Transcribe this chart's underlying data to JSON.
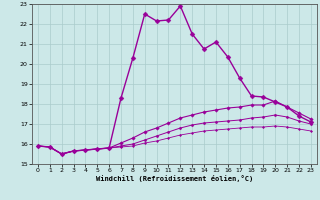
{
  "xlabel": "Windchill (Refroidissement éolien,°C)",
  "bg_color": "#cce8e8",
  "grid_color": "#aacccc",
  "line_color": "#990099",
  "xlim": [
    -0.5,
    23.5
  ],
  "ylim": [
    15,
    23
  ],
  "yticks": [
    15,
    16,
    17,
    18,
    19,
    20,
    21,
    22,
    23
  ],
  "xticks": [
    0,
    1,
    2,
    3,
    4,
    5,
    6,
    7,
    8,
    9,
    10,
    11,
    12,
    13,
    14,
    15,
    16,
    17,
    18,
    19,
    20,
    21,
    22,
    23
  ],
  "lines": [
    {
      "x": [
        0,
        1,
        2,
        3,
        4,
        5,
        6,
        7,
        8,
        9,
        10,
        11,
        12,
        13,
        14,
        15,
        16,
        17,
        18,
        19,
        20,
        21,
        22,
        23
      ],
      "y": [
        15.9,
        15.85,
        15.5,
        15.65,
        15.7,
        15.75,
        15.8,
        18.3,
        20.3,
        22.5,
        22.15,
        22.2,
        22.9,
        21.5,
        20.75,
        21.1,
        20.35,
        19.3,
        18.4,
        18.35,
        18.1,
        17.85,
        17.4,
        17.1
      ],
      "style": "-",
      "marker": "D",
      "markersize": 2.5,
      "linewidth": 1.0
    },
    {
      "x": [
        0,
        1,
        2,
        3,
        4,
        5,
        6,
        7,
        8,
        9,
        10,
        11,
        12,
        13,
        14,
        15,
        16,
        17,
        18,
        19,
        20,
        21,
        22,
        23
      ],
      "y": [
        15.9,
        15.85,
        15.5,
        15.65,
        15.7,
        15.75,
        15.8,
        16.05,
        16.3,
        16.6,
        16.8,
        17.05,
        17.3,
        17.45,
        17.6,
        17.7,
        17.8,
        17.85,
        17.95,
        17.95,
        18.15,
        17.85,
        17.55,
        17.25
      ],
      "style": "-",
      "marker": "D",
      "markersize": 1.8,
      "linewidth": 0.8
    },
    {
      "x": [
        0,
        1,
        2,
        3,
        4,
        5,
        6,
        7,
        8,
        9,
        10,
        11,
        12,
        13,
        14,
        15,
        16,
        17,
        18,
        19,
        20,
        21,
        22,
        23
      ],
      "y": [
        15.9,
        15.85,
        15.5,
        15.65,
        15.7,
        15.75,
        15.8,
        15.9,
        16.0,
        16.2,
        16.4,
        16.6,
        16.8,
        16.95,
        17.05,
        17.1,
        17.15,
        17.2,
        17.3,
        17.35,
        17.45,
        17.35,
        17.15,
        17.0
      ],
      "style": "-",
      "marker": "D",
      "markersize": 1.5,
      "linewidth": 0.7
    },
    {
      "x": [
        0,
        1,
        2,
        3,
        4,
        5,
        6,
        7,
        8,
        9,
        10,
        11,
        12,
        13,
        14,
        15,
        16,
        17,
        18,
        19,
        20,
        21,
        22,
        23
      ],
      "y": [
        15.9,
        15.85,
        15.5,
        15.65,
        15.7,
        15.75,
        15.8,
        15.85,
        15.9,
        16.05,
        16.15,
        16.3,
        16.45,
        16.55,
        16.65,
        16.7,
        16.75,
        16.8,
        16.85,
        16.85,
        16.9,
        16.85,
        16.75,
        16.65
      ],
      "style": "-",
      "marker": "D",
      "markersize": 1.2,
      "linewidth": 0.6
    }
  ]
}
